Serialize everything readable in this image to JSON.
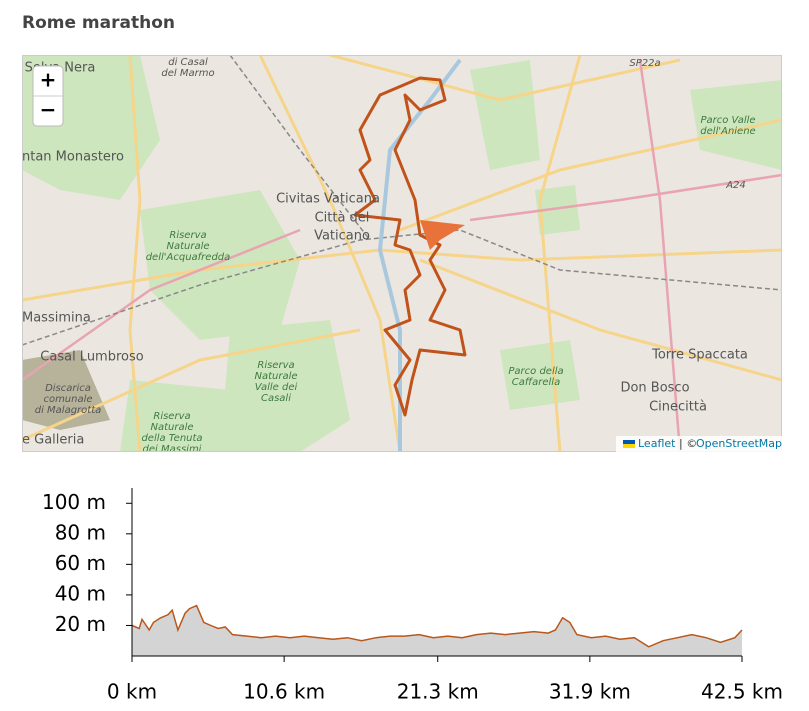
{
  "header": {
    "title": "Rome marathon"
  },
  "map": {
    "zoom_in": "+",
    "zoom_out": "−",
    "attribution": {
      "leaflet": "Leaflet",
      "separator": "| ©",
      "osm": "OpenStreetMap"
    },
    "labels": [
      [
        "di Casal",
        "del Marmo"
      ],
      [
        "Selva Nera"
      ],
      [
        "SP22a"
      ],
      [
        "ntan Monastero"
      ],
      [
        "Parco Valle",
        "dell'Aniene"
      ],
      [
        "A24"
      ],
      [
        "Civitas Vaticana"
      ],
      [
        "Città del",
        "Vaticano"
      ],
      [
        "Riserva",
        "Naturale",
        "dell'Acquafredda"
      ],
      [
        "Massimina"
      ],
      [
        "Casal Lumbroso"
      ],
      [
        "Discarica",
        "comunale",
        "di Malagrotta"
      ],
      [
        "Riserva",
        "Naturale",
        "Valle dei",
        "Casali"
      ],
      [
        "Parco della",
        "Caffarella"
      ],
      [
        "Torre Spaccata"
      ],
      [
        "Don Bosco"
      ],
      [
        "Cinecittà"
      ],
      [
        "Riserva",
        "Naturale",
        "della Tenuta",
        "dei Massimi"
      ],
      [
        "e Galleria"
      ]
    ]
  },
  "chart_data": {
    "type": "area",
    "x": [
      0,
      0.5,
      0.7,
      1.2,
      1.5,
      2,
      2.5,
      2.8,
      3.2,
      3.7,
      4,
      4.5,
      5,
      5.5,
      6,
      6.5,
      7,
      8,
      9,
      10,
      11,
      12,
      13,
      14,
      15,
      16,
      17,
      18,
      19,
      20,
      21,
      22,
      23,
      24,
      25,
      26,
      27,
      28,
      29,
      29.5,
      30,
      30.5,
      31,
      32,
      33,
      34,
      35,
      36,
      37,
      38,
      39,
      40,
      41,
      42,
      42.5
    ],
    "values": [
      20,
      18,
      24,
      17,
      22,
      25,
      27,
      30,
      17,
      28,
      31,
      33,
      22,
      20,
      18,
      19,
      14,
      13,
      12,
      13,
      12,
      13,
      12,
      11,
      12,
      10,
      12,
      13,
      13,
      14,
      12,
      13,
      12,
      14,
      15,
      14,
      15,
      16,
      15,
      17,
      25,
      22,
      14,
      12,
      13,
      11,
      12,
      6,
      10,
      12,
      14,
      12,
      9,
      12,
      17
    ],
    "color": "#b8581c",
    "fill": "#d4d4d4",
    "xlim": [
      0,
      42.5
    ],
    "xticks": [
      {
        "value": 0,
        "label": "0 km"
      },
      {
        "value": 10.6,
        "label": "10.6 km"
      },
      {
        "value": 21.3,
        "label": "21.3 km"
      },
      {
        "value": 31.9,
        "label": "31.9 km"
      },
      {
        "value": 42.5,
        "label": "42.5 km"
      }
    ],
    "ylim": [
      0,
      110
    ],
    "yticks": [
      {
        "value": 20,
        "label": "20 m"
      },
      {
        "value": 40,
        "label": "40 m"
      },
      {
        "value": 60,
        "label": "60 m"
      },
      {
        "value": 80,
        "label": "80 m"
      },
      {
        "value": 100,
        "label": "100 m"
      }
    ]
  }
}
